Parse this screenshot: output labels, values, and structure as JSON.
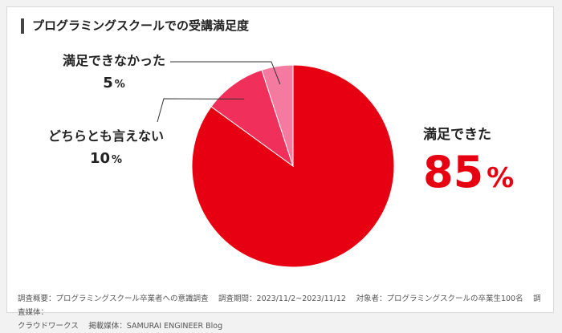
{
  "header": {
    "title": "プログラミングスクールでの受講満足度"
  },
  "chart_data": {
    "type": "pie",
    "title": "プログラミングスクールでの受講満足度",
    "unit": "%",
    "slices": [
      {
        "label": "満足できた",
        "value": 85,
        "color": "#e60012"
      },
      {
        "label": "どちらとも言えない",
        "value": 10,
        "color": "#f0305a"
      },
      {
        "label": "満足できなかった",
        "value": 5,
        "color": "#f57aa0"
      }
    ],
    "slice_border_color": "#ffffff",
    "leader_line_color": "#333333",
    "highlight_value_color": "#e60012"
  },
  "labels": {
    "satisfied": {
      "name": "満足できた",
      "value": "85",
      "unit": "%"
    },
    "neutral": {
      "name": "どちらとも言えない",
      "value": "10",
      "unit": "%"
    },
    "unsatisfied": {
      "name": "満足できなかった",
      "value": "5",
      "unit": "%"
    }
  },
  "footer": {
    "line1": "調査概要：プログラミングスクール卒業者への意識調査　 調査期間：2023/11/2~2023/11/12　 対象者：プログラミングスクールの卒業生100名　 調査媒体：",
    "line2": "クラウドワークス　 掲載媒体：SAMURAI ENGINEER Blog"
  }
}
